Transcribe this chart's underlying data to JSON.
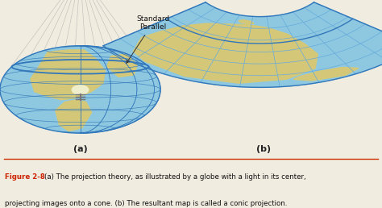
{
  "bg_color": "#f0ece0",
  "caption_bold": "Figure 2-8",
  "caption_line1": "   (a) The projection theory, as illustrated by a globe with a light in its center,",
  "caption_line2": "projecting images onto a cone. (b) The resultant map is called a conic projection.",
  "label_a": "(a)",
  "label_b": "(b)",
  "standard_parallel_text": "Standard\nParallel",
  "ocean_color": "#8ec8e0",
  "land_color": "#d4c878",
  "grid_color": "#3377bb",
  "grid_color_light": "#66aadd",
  "cone_color_fill": "#c8ccd0",
  "cone_color_edge": "#888888",
  "fig_label_color": "#cc2200",
  "caption_color": "#111111",
  "separator_color": "#cc3300",
  "bulb_color": "#ddbb44",
  "arrow_color": "#333333"
}
